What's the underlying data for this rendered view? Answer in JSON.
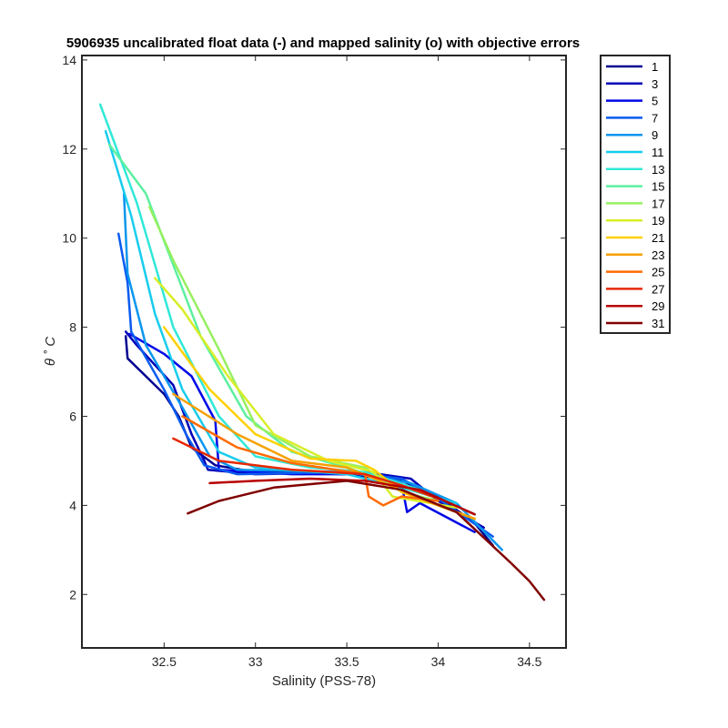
{
  "chart_data": {
    "type": "line",
    "title": "5906935 uncalibrated float data (-) and mapped salinity (o) with objective errors",
    "xlabel": "Salinity (PSS-78)",
    "ylabel": "θ ˚ C",
    "xlim": [
      32.05,
      34.7
    ],
    "ylim": [
      0.8,
      14.1
    ],
    "x_ticks": [
      32.5,
      33,
      33.5,
      34,
      34.5
    ],
    "x_tick_labels": [
      "32.5",
      "33",
      "33.5",
      "34",
      "34.5"
    ],
    "y_ticks": [
      2,
      4,
      6,
      8,
      10,
      12,
      14
    ],
    "y_tick_labels": [
      "2",
      "4",
      "6",
      "8",
      "10",
      "12",
      "14"
    ],
    "grid": false,
    "legend_position": "outside-top-right",
    "legend": [
      "1",
      "3",
      "5",
      "7",
      "9",
      "11",
      "13",
      "15",
      "17",
      "19",
      "21",
      "23",
      "25",
      "27",
      "29",
      "31"
    ],
    "series": [
      {
        "name": "1",
        "color": "#00008f",
        "x": [
          32.29,
          32.3,
          32.5,
          32.58,
          32.65,
          32.78,
          33.0,
          33.5,
          33.8,
          34.0,
          34.2,
          34.3
        ],
        "y": [
          7.8,
          7.3,
          6.5,
          6.0,
          5.3,
          4.9,
          4.75,
          4.7,
          4.55,
          4.2,
          3.6,
          3.1
        ]
      },
      {
        "name": "3",
        "color": "#0000b8",
        "x": [
          32.29,
          32.35,
          32.55,
          32.65,
          32.72,
          32.74,
          33.0,
          33.6,
          33.85,
          34.0,
          34.25
        ],
        "y": [
          7.9,
          7.6,
          6.7,
          5.6,
          5.0,
          4.8,
          4.7,
          4.75,
          4.6,
          4.1,
          3.5
        ]
      },
      {
        "name": "5",
        "color": "#0008e6",
        "x": [
          32.31,
          32.5,
          32.65,
          32.78,
          32.8,
          33.2,
          33.6,
          33.8,
          33.83,
          33.9,
          34.2
        ],
        "y": [
          7.85,
          7.4,
          6.9,
          5.9,
          4.8,
          4.7,
          4.7,
          4.5,
          3.85,
          4.05,
          3.4
        ]
      },
      {
        "name": "7",
        "color": "#0a5bf0",
        "x": [
          32.25,
          32.3,
          32.32,
          32.5,
          32.62,
          32.72,
          32.9,
          33.5,
          33.8,
          34.0,
          34.3
        ],
        "y": [
          10.1,
          9.0,
          7.9,
          6.6,
          5.6,
          4.9,
          4.7,
          4.75,
          4.6,
          4.15,
          3.3
        ]
      },
      {
        "name": "9",
        "color": "#0a96ee",
        "x": [
          32.28,
          32.3,
          32.4,
          32.6,
          32.75,
          32.9,
          33.5,
          33.85,
          34.1,
          34.35
        ],
        "y": [
          11.0,
          9.2,
          7.6,
          6.2,
          5.1,
          4.8,
          4.75,
          4.5,
          4.05,
          3.0
        ]
      },
      {
        "name": "11",
        "color": "#18cced",
        "x": [
          32.18,
          32.32,
          32.45,
          32.6,
          32.8,
          33.0,
          33.5,
          33.8,
          34.1
        ],
        "y": [
          12.4,
          10.5,
          8.3,
          6.6,
          5.2,
          4.85,
          4.7,
          4.4,
          4.05
        ]
      },
      {
        "name": "13",
        "color": "#30e8d8",
        "x": [
          32.15,
          32.35,
          32.55,
          32.8,
          33.0,
          33.3,
          33.6,
          33.9,
          34.2
        ],
        "y": [
          13.0,
          10.8,
          8.0,
          6.0,
          5.1,
          4.85,
          4.75,
          4.35,
          3.8
        ]
      },
      {
        "name": "15",
        "color": "#5cf0a0",
        "x": [
          32.2,
          32.4,
          32.7,
          32.95,
          33.2,
          33.5,
          33.75,
          34.0
        ],
        "y": [
          12.1,
          11.0,
          7.8,
          6.0,
          5.2,
          4.85,
          4.5,
          4.15
        ]
      },
      {
        "name": "17",
        "color": "#96f060",
        "x": [
          32.42,
          32.55,
          32.8,
          33.0,
          33.3,
          33.6,
          33.8,
          34.0
        ],
        "y": [
          10.7,
          9.5,
          7.5,
          5.8,
          5.1,
          4.85,
          4.3,
          4.1
        ]
      },
      {
        "name": "19",
        "color": "#d8ee28",
        "x": [
          32.45,
          32.6,
          32.85,
          33.1,
          33.4,
          33.65,
          33.75,
          34.1
        ],
        "y": [
          9.1,
          8.4,
          6.9,
          5.6,
          5.0,
          4.75,
          4.2,
          3.95
        ]
      },
      {
        "name": "21",
        "color": "#ffd000",
        "x": [
          32.5,
          32.75,
          33.0,
          33.3,
          33.55,
          33.65,
          33.8,
          34.2
        ],
        "y": [
          8.0,
          6.6,
          5.6,
          5.05,
          5.0,
          4.8,
          4.3,
          3.7
        ]
      },
      {
        "name": "23",
        "color": "#f5a000",
        "x": [
          32.55,
          32.9,
          33.2,
          33.5,
          33.65,
          33.9,
          34.2
        ],
        "y": [
          6.5,
          5.6,
          5.0,
          4.85,
          4.6,
          4.15,
          3.7
        ]
      },
      {
        "name": "25",
        "color": "#ff6a00",
        "x": [
          32.6,
          32.9,
          33.2,
          33.6,
          33.62,
          33.7,
          33.8,
          34.0
        ],
        "y": [
          6.0,
          5.3,
          4.95,
          4.7,
          4.2,
          4.0,
          4.2,
          4.1
        ]
      },
      {
        "name": "27",
        "color": "#e62800",
        "x": [
          32.55,
          32.8,
          33.2,
          33.6,
          33.8,
          34.0
        ],
        "y": [
          5.5,
          5.0,
          4.8,
          4.7,
          4.45,
          4.15
        ]
      },
      {
        "name": "29",
        "color": "#b80000",
        "x": [
          32.75,
          33.0,
          33.3,
          33.6,
          33.9,
          34.2
        ],
        "y": [
          4.5,
          4.55,
          4.6,
          4.55,
          4.35,
          3.8
        ]
      },
      {
        "name": "31",
        "color": "#800000",
        "x": [
          32.63,
          32.8,
          33.1,
          33.5,
          33.8,
          34.1,
          34.4,
          34.5,
          34.58
        ],
        "y": [
          3.82,
          4.1,
          4.4,
          4.55,
          4.35,
          3.85,
          2.7,
          2.3,
          1.88
        ]
      }
    ]
  }
}
